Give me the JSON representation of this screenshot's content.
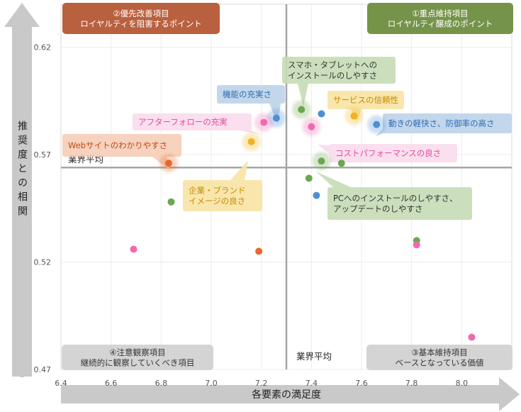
{
  "chart_data": {
    "type": "scatter",
    "xlabel": "各要素の満足度",
    "ylabel": "推奨度との相関",
    "xlim": [
      6.4,
      8.2
    ],
    "ylim": [
      0.47,
      0.64
    ],
    "x_ticks": [
      "6.4",
      "6.6",
      "6.8",
      "7.0",
      "7.2",
      "7.4",
      "7.6",
      "7.8",
      "8.0"
    ],
    "y_ticks": [
      "0.47",
      "0.52",
      "0.57",
      "0.62"
    ],
    "grid": true,
    "average": {
      "x": 7.3,
      "y": 0.564,
      "label_x": "業界平均",
      "label_y": "業界平均"
    },
    "quadrants": [
      {
        "lines": [
          "②優先改善項目",
          "ロイヤルティを阻害するポイント"
        ],
        "fill": "#b9603f",
        "text_color": "#ffffff"
      },
      {
        "lines": [
          "①重点維持項目",
          "ロイヤルティ醸成のポイント"
        ],
        "fill": "#76934a",
        "text_color": "#ffffff"
      },
      {
        "lines": [
          "④注意観察項目",
          "継続的に観察していくべき項目"
        ],
        "fill": "#d4d4d4",
        "text_color": "#333333"
      },
      {
        "lines": [
          "③基本維持項目",
          "ベースとなっている価値"
        ],
        "fill": "#d4d4d4",
        "text_color": "#333333"
      }
    ],
    "series": [
      {
        "color": "#6aa84f",
        "points": [
          [
            6.84,
            0.548
          ],
          [
            7.36,
            0.591
          ],
          [
            7.39,
            0.559
          ],
          [
            7.44,
            0.567
          ],
          [
            7.52,
            0.566
          ],
          [
            7.82,
            0.53
          ]
        ]
      },
      {
        "color": "#f06ab0",
        "points": [
          [
            6.69,
            0.526
          ],
          [
            7.21,
            0.585
          ],
          [
            7.4,
            0.583
          ],
          [
            7.82,
            0.528
          ],
          [
            8.04,
            0.485
          ]
        ]
      },
      {
        "color": "#e8692c",
        "points": [
          [
            6.83,
            0.566
          ],
          [
            7.19,
            0.525
          ]
        ]
      },
      {
        "color": "#4d8fd6",
        "points": [
          [
            7.26,
            0.587
          ],
          [
            7.44,
            0.589
          ],
          [
            7.42,
            0.551
          ],
          [
            7.66,
            0.584
          ]
        ]
      },
      {
        "color": "#f2b41a",
        "points": [
          [
            7.16,
            0.576
          ],
          [
            7.57,
            0.588
          ]
        ]
      }
    ],
    "callouts": [
      {
        "lines": [
          "スマホ・タブレットへの",
          "インストールのしやすさ"
        ],
        "fill": "#c7dcb6",
        "text_color": "#333333"
      },
      {
        "lines": [
          "機能の充実さ"
        ],
        "fill": "#bcd3ea",
        "text_color": "#2f6db5"
      },
      {
        "lines": [
          "サービスの信頼性"
        ],
        "fill": "#f8e3a3",
        "text_color": "#c98b00"
      },
      {
        "lines": [
          "アフターフォローの充実"
        ],
        "fill": "#fadcec",
        "text_color": "#e64a9e"
      },
      {
        "lines": [
          "動きの軽快さ、防御率の高さ"
        ],
        "fill": "#bcd3ea",
        "text_color": "#2f6db5"
      },
      {
        "lines": [
          "Webサイトのわかりやすさ"
        ],
        "fill": "#f6cdb7",
        "text_color": "#c24a12"
      },
      {
        "lines": [
          "コストパフォーマンスの良さ"
        ],
        "fill": "#fadcec",
        "text_color": "#e64a9e"
      },
      {
        "lines": [
          "企業・ブランド",
          "イメージの良さ"
        ],
        "fill": "#f8e3a3",
        "text_color": "#c98b00"
      },
      {
        "lines": [
          "PCへのインストールのしやすさ、",
          "アップデートのしやすさ"
        ],
        "fill": "#c7dcb6",
        "text_color": "#333333"
      }
    ]
  }
}
